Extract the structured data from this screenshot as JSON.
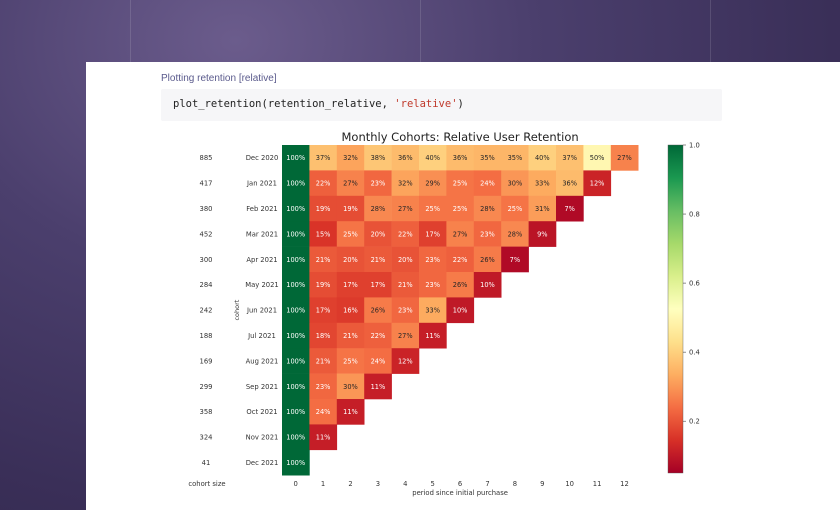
{
  "notebook": {
    "section_label": "Plotting retention [relative]",
    "code": {
      "fn": "plot_retention",
      "arg": "retention_relative",
      "str_arg": "'relative'"
    }
  },
  "chart_data": {
    "type": "heatmap",
    "title": "Monthly Cohorts: Relative User Retention",
    "xlabel": "period since initial purchase",
    "ylabel": "cohort",
    "size_label": "cohort size",
    "colormap": "RdYlGn",
    "vmin": 0.05,
    "vmax": 1.0,
    "colorbar_ticks": [
      "0.2",
      "0.4",
      "0.6",
      "0.8",
      "1.0"
    ],
    "x_ticks": [
      "0",
      "1",
      "2",
      "3",
      "4",
      "5",
      "6",
      "7",
      "8",
      "9",
      "10",
      "11",
      "12"
    ],
    "cohorts": [
      "Dec 2020",
      "Jan 2021",
      "Feb 2021",
      "Mar 2021",
      "Apr 2021",
      "May 2021",
      "Jun 2021",
      "Jul 2021",
      "Aug 2021",
      "Sep 2021",
      "Oct 2021",
      "Nov 2021",
      "Dec 2021"
    ],
    "cohort_sizes": [
      "885",
      "417",
      "380",
      "452",
      "300",
      "284",
      "242",
      "188",
      "169",
      "299",
      "358",
      "324",
      "41"
    ],
    "values": [
      [
        100,
        37,
        32,
        38,
        36,
        40,
        36,
        35,
        35,
        40,
        37,
        50,
        27
      ],
      [
        100,
        22,
        27,
        23,
        32,
        29,
        25,
        24,
        30,
        33,
        36,
        12
      ],
      [
        100,
        19,
        19,
        28,
        27,
        25,
        25,
        28,
        25,
        31,
        7
      ],
      [
        100,
        15,
        25,
        20,
        22,
        17,
        27,
        23,
        28,
        9
      ],
      [
        100,
        21,
        20,
        21,
        20,
        23,
        22,
        26,
        7
      ],
      [
        100,
        19,
        17,
        17,
        21,
        23,
        26,
        10
      ],
      [
        100,
        17,
        16,
        26,
        23,
        33,
        10
      ],
      [
        100,
        18,
        21,
        22,
        27,
        11
      ],
      [
        100,
        21,
        25,
        24,
        12
      ],
      [
        100,
        23,
        30,
        11
      ],
      [
        100,
        24,
        11
      ],
      [
        100,
        11
      ],
      [
        100
      ]
    ]
  }
}
